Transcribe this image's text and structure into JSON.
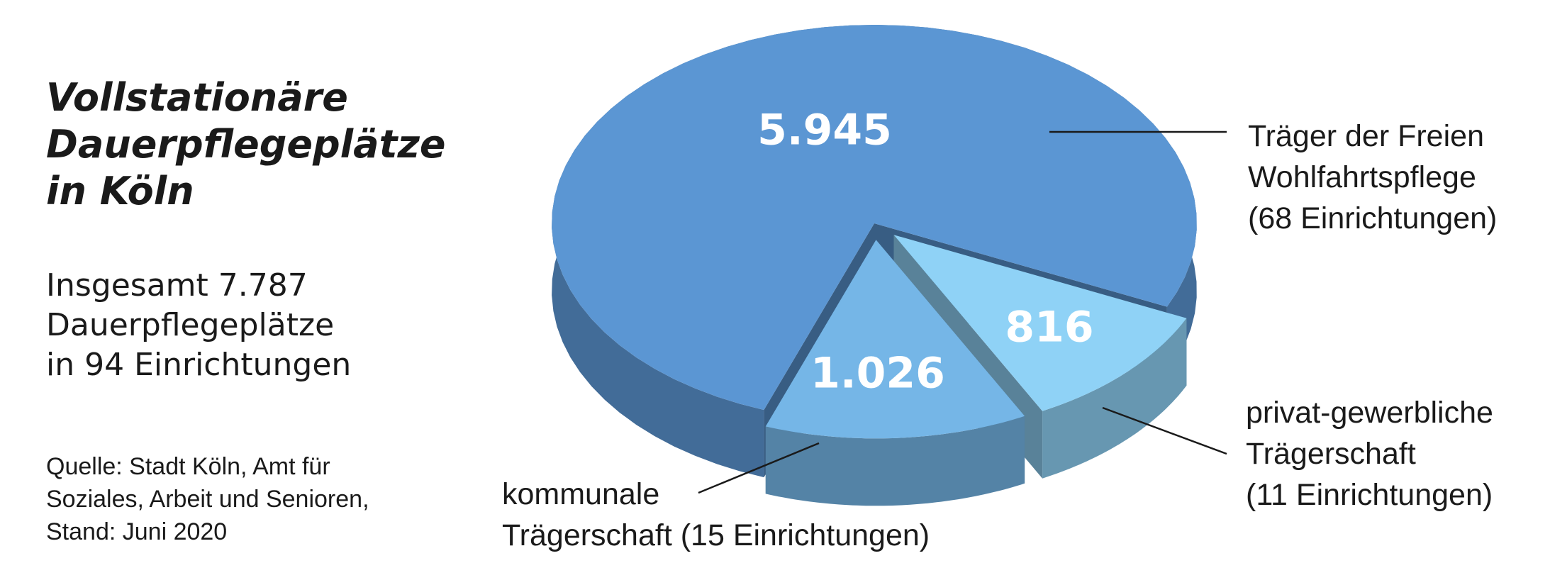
{
  "chart_data": {
    "type": "pie",
    "title": "Vollstationäre\nDauerpflegeplätze\nin Köln",
    "subtitle": "Insgesamt 7.787\nDauerpflegeplätze\nin 94 Einrichtungen",
    "source": "Quelle: Stadt Köln, Amt für\nSoziales, Arbeit und Senioren,\nStand: Juni 2020",
    "categories": [
      "Träger der Freien\nWohlfahrtspflege\n(68 Einrichtungen)",
      "privat-gewerbliche\nTrägerschaft\n(11 Einrichtungen)",
      "kommunale\nTrägerschaft (15 Einrichtungen)"
    ],
    "values": [
      5945,
      816,
      1026
    ],
    "value_labels": [
      "5.945",
      "816",
      "1.026"
    ],
    "colors": [
      "#5b96d3",
      "#8fd2f6",
      "#75b6e7"
    ]
  }
}
